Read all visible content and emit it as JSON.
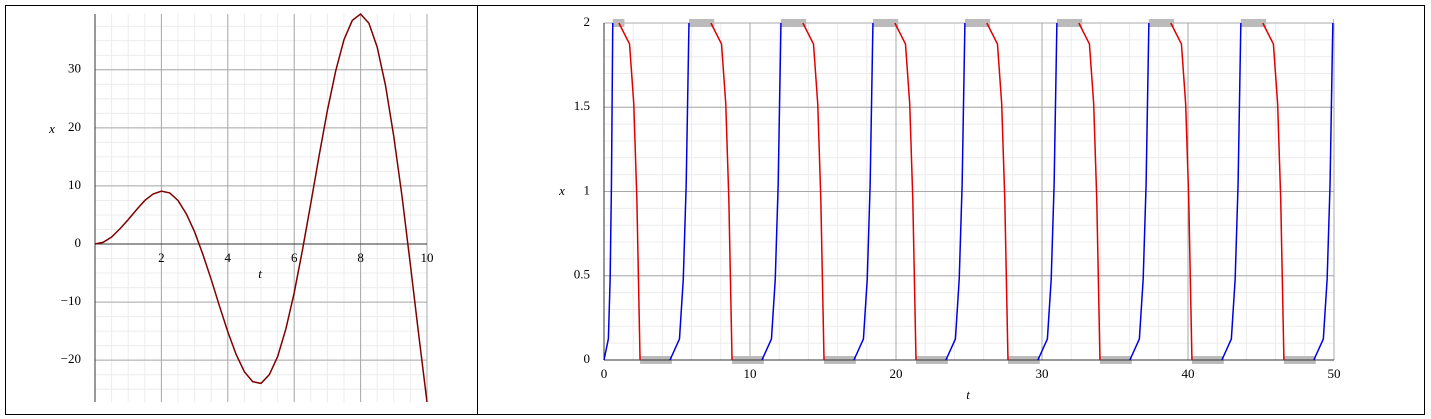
{
  "chart_data": [
    {
      "type": "line",
      "x_label": "t",
      "y_label": "x",
      "grid": true,
      "xlim": [
        0,
        10
      ],
      "ylim": [
        -27.2,
        39.6
      ],
      "xticks": [
        2,
        4,
        6,
        8,
        10
      ],
      "yticks": [
        {
          "value": -20,
          "label": "−20"
        },
        {
          "value": -10,
          "label": "−10"
        },
        0,
        10,
        20,
        30
      ],
      "series": [
        {
          "color": "#800000",
          "x": [
            0,
            0.25,
            0.5,
            0.75,
            1,
            1.25,
            1.5,
            1.75,
            2,
            2.25,
            2.5,
            2.75,
            3,
            3.25,
            3.5,
            3.75,
            4,
            4.25,
            4.5,
            4.75,
            5,
            5.25,
            5.5,
            5.75,
            6,
            6.25,
            6.5,
            6.75,
            7,
            7.25,
            7.5,
            7.75,
            8,
            8.25,
            8.5,
            8.75,
            9,
            9.25,
            9.5,
            9.75,
            10
          ],
          "values": [
            0,
            0.3,
            1.2,
            2.6,
            4.2,
            5.9,
            7.5,
            8.6,
            9.1,
            8.8,
            7.5,
            5.2,
            2.1,
            -1.8,
            -6.1,
            -10.7,
            -15.1,
            -19.0,
            -22.0,
            -23.7,
            -24.0,
            -22.5,
            -19.4,
            -14.6,
            -8.4,
            -1.0,
            7.0,
            15.2,
            23.0,
            29.8,
            35.2,
            38.5,
            39.6,
            38.0,
            33.9,
            27.3,
            18.5,
            8.1,
            -3.6,
            -15.6,
            -27.2
          ]
        }
      ]
    },
    {
      "type": "line",
      "x_label": "t",
      "y_label": "x",
      "grid": true,
      "xlim": [
        0,
        50
      ],
      "ylim": [
        0,
        2
      ],
      "xticks": [
        0,
        10,
        20,
        30,
        40,
        50
      ],
      "yticks": [
        0,
        0.5,
        1,
        1.5,
        2
      ],
      "series": [
        {
          "color": "#0000e0",
          "x": [
            0,
            0.3,
            0.42,
            0.51,
            0.6,
            null,
            4.52,
            5.17,
            5.43,
            5.63,
            5.82,
            null,
            10.82,
            11.47,
            11.73,
            11.93,
            12.12,
            null,
            17.12,
            17.77,
            18.03,
            18.23,
            18.42,
            null,
            23.42,
            24.07,
            24.33,
            24.53,
            24.72,
            null,
            29.72,
            30.37,
            30.63,
            30.83,
            31.02,
            null,
            36.02,
            36.67,
            36.93,
            37.13,
            37.32,
            null,
            42.32,
            42.97,
            43.23,
            43.43,
            43.62,
            null,
            48.62,
            49.27,
            49.53,
            49.73,
            49.92
          ],
          "values": [
            0,
            0.125,
            0.48,
            1.044,
            2,
            null,
            0,
            0.125,
            0.48,
            1.044,
            2,
            null,
            0,
            0.125,
            0.48,
            1.044,
            2,
            null,
            0,
            0.125,
            0.48,
            1.044,
            2,
            null,
            0,
            0.125,
            0.48,
            1.044,
            2,
            null,
            0,
            0.125,
            0.48,
            1.044,
            2,
            null,
            0,
            0.125,
            0.48,
            1.044,
            2,
            null,
            0,
            0.125,
            0.48,
            1.044,
            2,
            null,
            0,
            0.125,
            0.48,
            1.044,
            2
          ]
        },
        {
          "color": "#e00000",
          "x": [
            1.02,
            1.75,
            2.04,
            2.25,
            2.47,
            null,
            7.32,
            8.05,
            8.34,
            8.55,
            8.77,
            null,
            13.62,
            14.35,
            14.64,
            14.85,
            15.07,
            null,
            19.92,
            20.65,
            20.94,
            21.15,
            21.37,
            null,
            26.22,
            26.95,
            27.24,
            27.45,
            27.67,
            null,
            32.52,
            33.25,
            33.54,
            33.75,
            33.97,
            null,
            38.82,
            39.55,
            39.84,
            40.05,
            40.27,
            null,
            45.12,
            45.85,
            46.14,
            46.35,
            46.57
          ],
          "values": [
            2,
            1.875,
            1.52,
            0.956,
            0,
            null,
            2,
            1.875,
            1.52,
            0.956,
            0,
            null,
            2,
            1.875,
            1.52,
            0.956,
            0,
            null,
            2,
            1.875,
            1.52,
            0.956,
            0,
            null,
            2,
            1.875,
            1.52,
            0.956,
            0,
            null,
            2,
            1.875,
            1.52,
            0.956,
            0,
            null,
            2,
            1.875,
            1.52,
            0.956,
            0,
            null,
            2,
            1.875,
            1.52,
            0.956,
            0
          ]
        }
      ],
      "band_color": "#bbbbbb",
      "bands": [
        {
          "x": [
            0.6,
            1.4
          ],
          "y": 2
        },
        {
          "x": [
            5.82,
            7.55
          ],
          "y": 2
        },
        {
          "x": [
            12.12,
            13.85
          ],
          "y": 2
        },
        {
          "x": [
            18.42,
            20.15
          ],
          "y": 2
        },
        {
          "x": [
            24.72,
            26.45
          ],
          "y": 2
        },
        {
          "x": [
            31.02,
            32.75
          ],
          "y": 2
        },
        {
          "x": [
            37.32,
            39.05
          ],
          "y": 2
        },
        {
          "x": [
            43.62,
            45.35
          ],
          "y": 2
        },
        {
          "x": [
            49.92,
            50
          ],
          "y": 2
        },
        {
          "x": [
            2.47,
            4.65
          ],
          "y": 0
        },
        {
          "x": [
            8.77,
            10.95
          ],
          "y": 0
        },
        {
          "x": [
            15.07,
            17.25
          ],
          "y": 0
        },
        {
          "x": [
            21.37,
            23.55
          ],
          "y": 0
        },
        {
          "x": [
            27.67,
            29.85
          ],
          "y": 0
        },
        {
          "x": [
            33.97,
            36.15
          ],
          "y": 0
        },
        {
          "x": [
            40.27,
            42.45
          ],
          "y": 0
        },
        {
          "x": [
            46.57,
            48.75
          ],
          "y": 0
        }
      ]
    }
  ]
}
